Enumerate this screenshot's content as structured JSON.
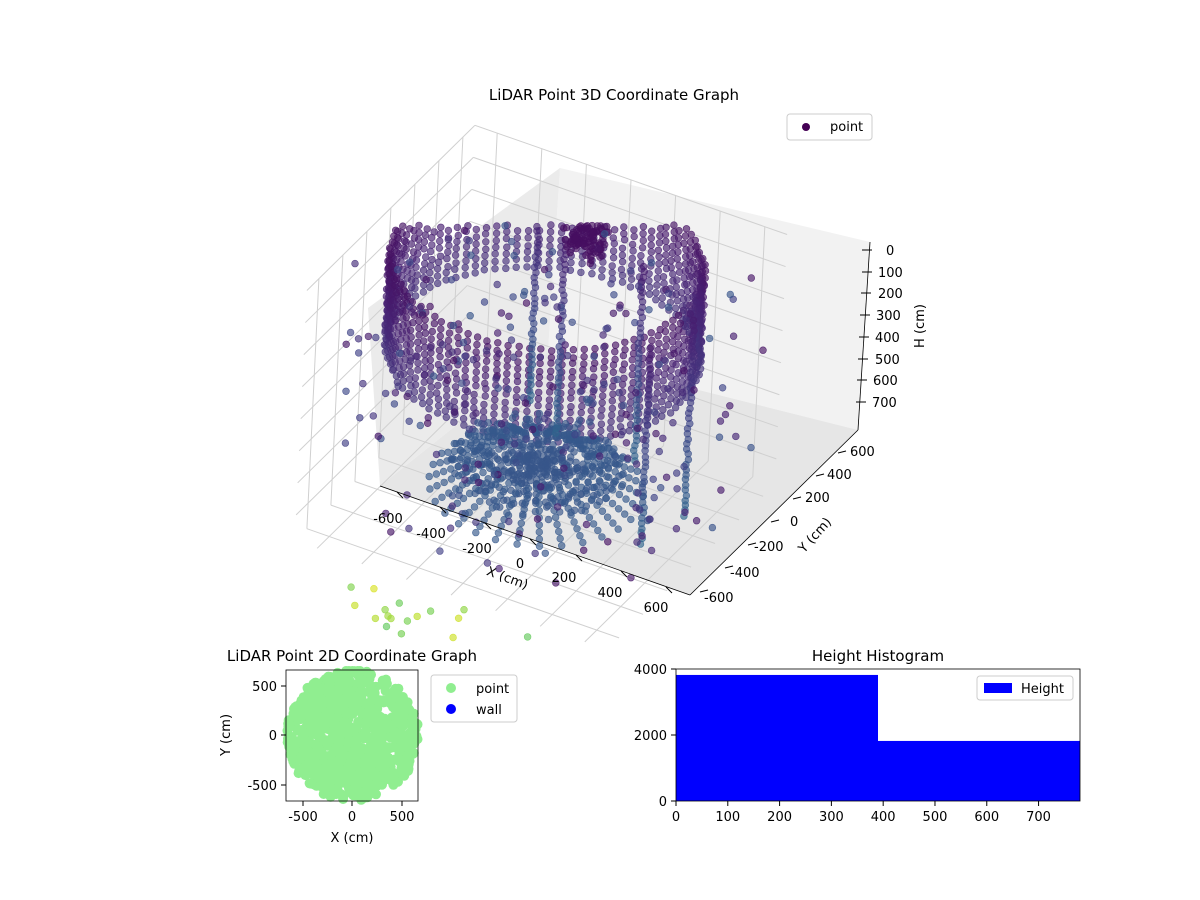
{
  "chart_data": [
    {
      "type": "scatter3d",
      "title": "LiDAR Point 3D Coordinate Graph",
      "xlabel": "X (cm)",
      "ylabel": "Y (cm)",
      "zlabel": "H (cm)",
      "xticks": [
        -600,
        -400,
        -200,
        0,
        200,
        400,
        600
      ],
      "yticks": [
        -600,
        -400,
        -200,
        0,
        200,
        400,
        600
      ],
      "zticks": [
        0,
        100,
        200,
        300,
        400,
        500,
        600,
        700
      ],
      "xlim": [
        -700,
        700
      ],
      "ylim": [
        -700,
        700
      ],
      "zlim": [
        0,
        780
      ],
      "zaxis_inverted": true,
      "colormap": "viridis",
      "legend": {
        "entries": [
          "point"
        ],
        "position": "top-right"
      },
      "series": [
        {
          "name": "point",
          "description_shapes": [
            {
              "shape": "ring",
              "center": [
                0,
                0
              ],
              "radius": 620,
              "h": [
                0,
                300
              ]
            },
            {
              "shape": "disk",
              "center": [
                0,
                0
              ],
              "radius": 330,
              "h": [
                600,
                700
              ]
            }
          ]
        }
      ]
    },
    {
      "type": "scatter",
      "title": "LiDAR Point 2D Coordinate Graph",
      "xlabel": "X (cm)",
      "ylabel": "Y (cm)",
      "xticks": [
        -500,
        0,
        500
      ],
      "yticks": [
        -500,
        0,
        500
      ],
      "xlim": [
        -660,
        660
      ],
      "ylim": [
        -660,
        660
      ],
      "legend": {
        "entries": [
          {
            "name": "point",
            "color": "#90ee90"
          },
          {
            "name": "wall",
            "color": "#0000ff"
          }
        ],
        "position": "outside-right"
      }
    },
    {
      "type": "bar",
      "title": "Height Histogram",
      "xticks": [
        0,
        100,
        200,
        300,
        400,
        500,
        600,
        700
      ],
      "yticks": [
        0,
        2000,
        4000
      ],
      "xlim": [
        0,
        780
      ],
      "ylim": [
        0,
        4000
      ],
      "bins": [
        {
          "from": 0,
          "to": 390,
          "count": 3820
        },
        {
          "from": 390,
          "to": 780,
          "count": 1820
        }
      ],
      "color": "#0000ff",
      "legend": {
        "entries": [
          "Height"
        ],
        "position": "top-right"
      }
    }
  ]
}
